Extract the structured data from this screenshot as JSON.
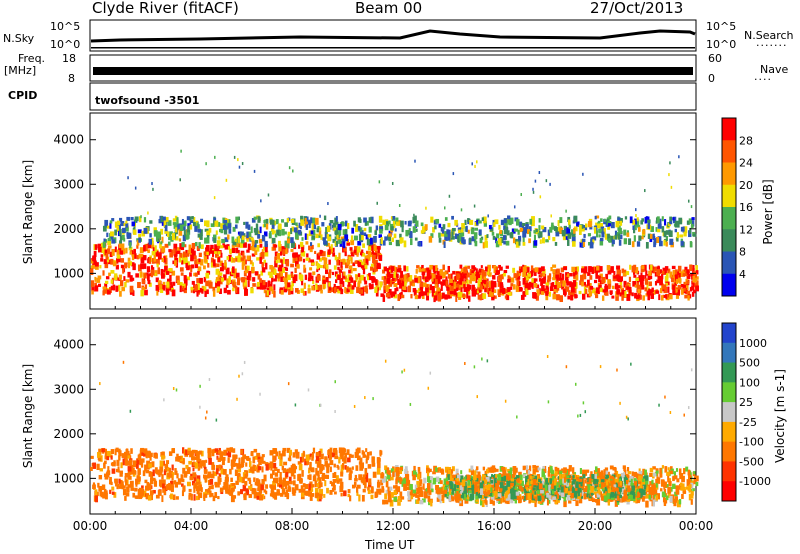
{
  "header": {
    "station": "Clyde River (fitACF)",
    "beam": "Beam 00",
    "date": "27/Oct/2013"
  },
  "top_panels": {
    "nsky_label": "N.Sky",
    "nsky_scale_top": "10^5",
    "nsky_scale_bottom": "10^0",
    "nsearch_label": "N.Search",
    "nsearch_scale_top": "10^5",
    "nsearch_scale_bottom": "10^0",
    "freq_label_line1": "Freq.",
    "freq_label_line2": "[MHz]",
    "freq_ticks": [
      "18",
      "8"
    ],
    "nave_label": "Nave",
    "nave_ticks": [
      "60",
      "0"
    ],
    "cpid_label": "CPID",
    "cpid_value": "twofsound -3501"
  },
  "colors": {
    "power_scale": [
      "#0000ee",
      "#2a55b5",
      "#3a8a5a",
      "#4caf50",
      "#f0dc00",
      "#ff9900",
      "#ff5500",
      "#ff0000"
    ],
    "velocity_scale": [
      "#2244cc",
      "#3377bb",
      "#339955",
      "#66cc33",
      "#c8c8c8",
      "#ffaa00",
      "#ff7700",
      "#ff3300",
      "#ff0000"
    ]
  },
  "chart_data": [
    {
      "type": "heatmap",
      "title": "Power",
      "xlabel": "",
      "ylabel": "Slant Range [km]",
      "ylim": [
        200,
        4600
      ],
      "y_ticks": [
        "1000",
        "2000",
        "3000",
        "4000"
      ],
      "xlim": [
        "00:00",
        "24:00"
      ],
      "colorbar_label": "Power [dB]",
      "colorbar_ticks": [
        "4",
        "8",
        "12",
        "16",
        "20",
        "24",
        "28"
      ],
      "colorbar_range": [
        0,
        32
      ],
      "scatter_regions": [
        {
          "t_start": 0.0,
          "t_end": 11.5,
          "range_low": 600,
          "range_high": 1700,
          "dominant_power_db": 26
        },
        {
          "t_start": 11.5,
          "t_end": 24.0,
          "range_low": 500,
          "range_high": 1200,
          "dominant_power_db": 28
        },
        {
          "t_start": 0.5,
          "t_end": 24.0,
          "range_low": 1700,
          "range_high": 2300,
          "dominant_power_db": 12
        }
      ]
    },
    {
      "type": "heatmap",
      "title": "Velocity",
      "xlabel": "Time UT",
      "ylabel": "Slant Range [km]",
      "ylim": [
        200,
        4600
      ],
      "y_ticks": [
        "1000",
        "2000",
        "3000",
        "4000"
      ],
      "x_ticks": [
        "00:00",
        "04:00",
        "08:00",
        "12:00",
        "16:00",
        "20:00",
        "00:00"
      ],
      "colorbar_label": "Velocity [m s-1]",
      "colorbar_ticks": [
        "1000",
        "500",
        "100",
        "25",
        "-25",
        "-100",
        "-500",
        "-1000"
      ],
      "scatter_regions": [
        {
          "t_start": 0.0,
          "t_end": 11.5,
          "range_low": 600,
          "range_high": 1700,
          "dominant_velocity": -300
        },
        {
          "t_start": 11.5,
          "t_end": 24.0,
          "range_low": 500,
          "range_high": 1300,
          "dominant_velocity": -150
        },
        {
          "t_start": 14.0,
          "t_end": 22.0,
          "range_low": 600,
          "range_high": 1100,
          "dominant_velocity": 0
        }
      ]
    }
  ]
}
